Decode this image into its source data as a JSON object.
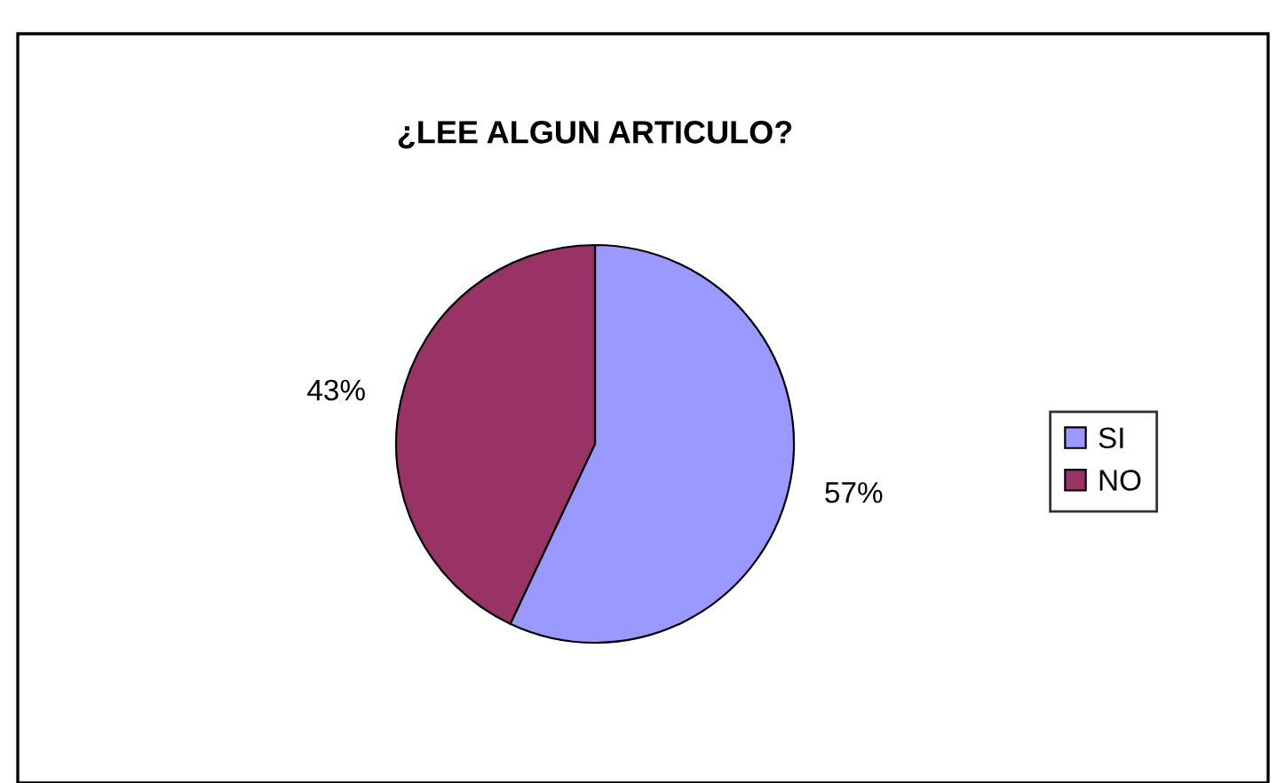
{
  "chart_data": {
    "type": "pie",
    "title": "¿LEE ALGUN ARTICULO?",
    "categories": [
      "SI",
      "NO"
    ],
    "values": [
      57,
      43
    ],
    "colors": [
      "#9999ff",
      "#993366"
    ],
    "value_labels": [
      "57%",
      "43%"
    ],
    "legend": "right"
  }
}
